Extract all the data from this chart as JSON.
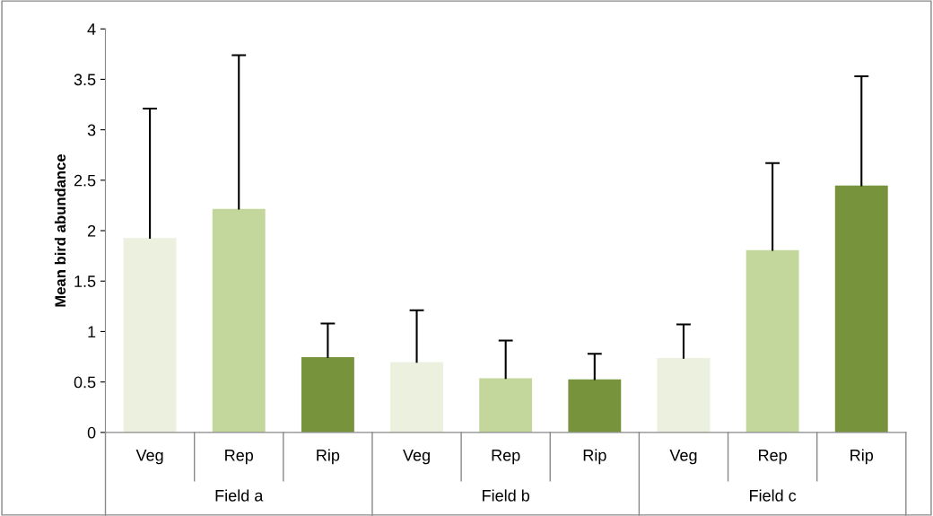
{
  "chart_data": {
    "type": "bar",
    "ylabel": "Mean bird abundance",
    "categories": [
      "Veg",
      "Rep",
      "Rip",
      "Veg",
      "Rep",
      "Rip",
      "Veg",
      "Rep",
      "Rip"
    ],
    "values": [
      1.92,
      2.21,
      0.74,
      0.69,
      0.53,
      0.52,
      0.73,
      1.8,
      2.44
    ],
    "errors": [
      [
        1.92,
        3.21
      ],
      [
        2.21,
        3.74
      ],
      [
        0.74,
        1.08
      ],
      [
        0.69,
        1.21
      ],
      [
        0.53,
        0.91
      ],
      [
        0.52,
        0.78
      ],
      [
        0.73,
        1.07
      ],
      [
        1.8,
        2.67
      ],
      [
        2.44,
        3.53
      ]
    ],
    "colors": [
      "#ebf1de",
      "#c3d69b",
      "#77933c",
      "#ebf1de",
      "#c3d69b",
      "#77933c",
      "#ebf1de",
      "#c3d69b",
      "#77933c"
    ],
    "annotations": [
      "Field a",
      "Field b",
      "Field c"
    ],
    "ylim": [
      0,
      4
    ],
    "yticks": [
      0,
      0.5,
      1,
      1.5,
      2,
      2.5,
      3,
      3.5,
      4
    ],
    "grid": false,
    "legend": false
  }
}
